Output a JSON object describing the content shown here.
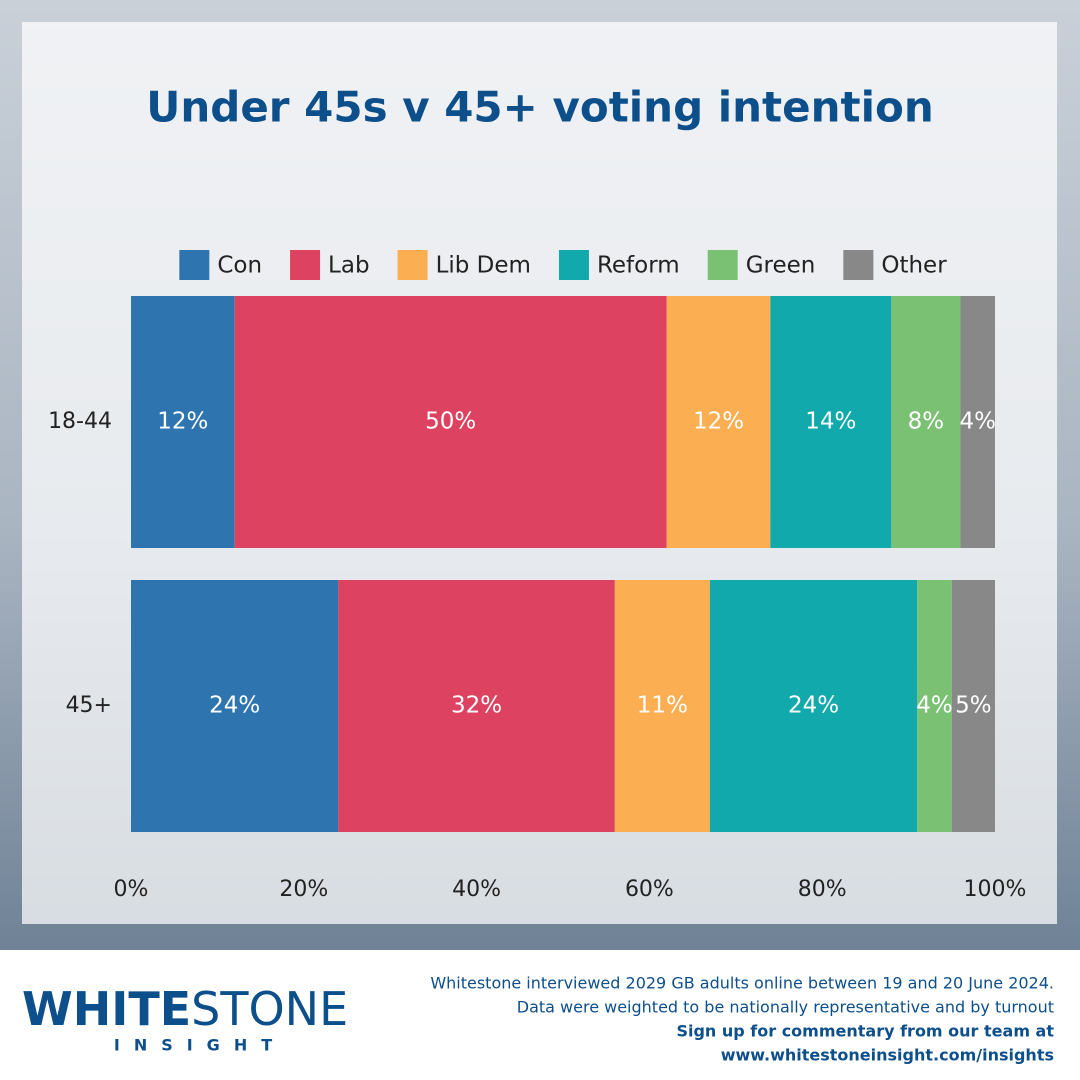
{
  "chart_data": {
    "type": "stacked-barh",
    "title": "Under 45s v 45+ voting intention",
    "categories": [
      "18-44",
      "45+"
    ],
    "series": [
      {
        "name": "Con",
        "color": "#2e75b0",
        "values": [
          12,
          24
        ],
        "value_labels": [
          "12%",
          "24%"
        ]
      },
      {
        "name": "Lab",
        "color": "#dd4360",
        "values": [
          50,
          32
        ],
        "value_labels": [
          "50%",
          "32%"
        ]
      },
      {
        "name": "Lib Dem",
        "color": "#fbae52",
        "values": [
          12,
          11
        ],
        "value_labels": [
          "12%",
          "11%"
        ]
      },
      {
        "name": "Reform",
        "color": "#12a9ad",
        "values": [
          14,
          24
        ],
        "value_labels": [
          "14%",
          "24%"
        ]
      },
      {
        "name": "Green",
        "color": "#7bc173",
        "values": [
          8,
          4
        ],
        "value_labels": [
          "8%",
          "4%"
        ]
      },
      {
        "name": "Other",
        "color": "#888888",
        "values": [
          4,
          5
        ],
        "value_labels": [
          "4%",
          "5%"
        ]
      }
    ],
    "xlim": [
      0,
      100
    ],
    "xticks": [
      {
        "value": 0,
        "label": "0%"
      },
      {
        "value": 20,
        "label": "20%"
      },
      {
        "value": 40,
        "label": "40%"
      },
      {
        "value": 60,
        "label": "60%"
      },
      {
        "value": 80,
        "label": "80%"
      },
      {
        "value": 100,
        "label": "100%"
      }
    ],
    "legend": "top",
    "grid": false
  },
  "logo": {
    "brand_bold": "WHITE",
    "brand_rest": "STONE",
    "tagline": "INSIGHT"
  },
  "footer": {
    "note_lines": [
      "Whitestone interviewed 2029 GB adults online between 19 and 20 June 2024.",
      "Data were weighted to be nationally representative and by turnout"
    ],
    "cta_lines": [
      "Sign up for commentary from our team at",
      "www.whitestoneinsight.com/insights"
    ]
  }
}
